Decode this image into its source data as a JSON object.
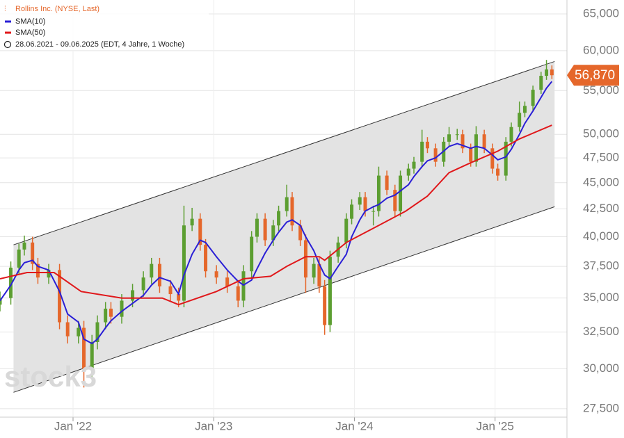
{
  "chart_data": {
    "type": "candlestick",
    "title": "Rollins Inc. (NYSE, Last)",
    "subtitle": "28.06.2021 - 09.06.2025  (EDT, 4 Jahre, 1 Woche)",
    "watermark": "stock3",
    "log_scale": true,
    "grid": true,
    "up_color": "#5c9e31",
    "down_color": "#e5672b",
    "x": [
      0,
      4,
      7,
      9,
      12,
      14,
      18,
      22,
      25,
      29,
      31,
      34,
      36,
      39,
      41,
      45,
      49,
      53,
      56,
      59,
      63,
      66,
      68,
      71,
      74,
      76,
      80,
      84,
      88,
      90,
      93,
      95,
      98,
      101,
      103,
      106,
      108,
      111,
      113,
      116,
      118,
      120,
      122,
      125,
      128,
      130,
      133,
      135,
      138,
      140,
      143,
      146,
      148,
      151,
      153,
      156,
      158,
      161,
      164,
      166,
      169,
      171,
      174,
      176,
      179,
      182,
      184,
      187,
      189,
      192,
      194,
      197,
      200,
      202,
      204
    ],
    "open": [
      34500,
      35000,
      37400,
      38900,
      39500,
      37700,
      36600,
      37200,
      33200,
      32200,
      32800,
      30000,
      31800,
      33200,
      34200,
      33600,
      34800,
      35600,
      36600,
      37700,
      35900,
      35300,
      34800,
      41000,
      41600,
      39300,
      37100,
      36600,
      35900,
      34800,
      37100,
      40000,
      41600,
      39700,
      41000,
      42300,
      43600,
      41000,
      39700,
      36600,
      37700,
      35900,
      33000,
      38300,
      39500,
      41600,
      42900,
      43600,
      42300,
      42300,
      45700,
      44300,
      42300,
      45700,
      46400,
      47100,
      49200,
      48500,
      47100,
      49200,
      50000,
      50000,
      48500,
      47100,
      50000,
      48500,
      46400,
      45700,
      49200,
      50800,
      52400,
      53200,
      55100,
      56800,
      57600
    ],
    "high": [
      35500,
      37900,
      39400,
      40100,
      40000,
      38200,
      37700,
      37700,
      33700,
      33300,
      33300,
      32300,
      33700,
      34700,
      34700,
      35300,
      36100,
      37100,
      38200,
      38200,
      36400,
      35800,
      42800,
      42600,
      42100,
      39800,
      37600,
      37100,
      36400,
      37600,
      40500,
      42100,
      42100,
      41500,
      42800,
      44800,
      44100,
      41500,
      40200,
      38200,
      38200,
      36400,
      38800,
      40000,
      42100,
      43400,
      44100,
      44100,
      42800,
      46600,
      46200,
      44800,
      46200,
      46900,
      47600,
      50500,
      49700,
      49000,
      49700,
      50800,
      50600,
      50500,
      49000,
      50900,
      50500,
      49000,
      46900,
      49700,
      51300,
      53700,
      53700,
      55600,
      57300,
      58800,
      58100
    ],
    "low": [
      34000,
      34500,
      36900,
      38400,
      37200,
      36100,
      36100,
      32700,
      31700,
      31700,
      28800,
      29500,
      31300,
      32700,
      33100,
      33100,
      34300,
      35100,
      36100,
      35400,
      34800,
      34300,
      34300,
      40500,
      38800,
      36600,
      36100,
      35400,
      34300,
      34300,
      36600,
      39500,
      39200,
      39200,
      40500,
      41800,
      40500,
      39200,
      35400,
      36100,
      35400,
      32300,
      32500,
      37800,
      39000,
      41100,
      42400,
      41800,
      41000,
      41800,
      43800,
      41800,
      41800,
      45200,
      45900,
      46600,
      48000,
      46600,
      46600,
      48700,
      49400,
      48000,
      46600,
      46600,
      48000,
      45900,
      45200,
      45200,
      48700,
      50300,
      51900,
      52700,
      54600,
      56300,
      56400
    ],
    "close": [
      35000,
      37400,
      38900,
      39500,
      37700,
      36600,
      37200,
      33200,
      32200,
      32800,
      30000,
      31800,
      33200,
      34200,
      33600,
      34800,
      35600,
      36600,
      37700,
      35900,
      35300,
      34800,
      41000,
      41600,
      39300,
      37100,
      36600,
      35900,
      34800,
      37100,
      40000,
      41600,
      39700,
      41000,
      42300,
      43600,
      41000,
      39700,
      36600,
      37700,
      35900,
      33000,
      38300,
      39500,
      41600,
      42900,
      43600,
      42300,
      42300,
      45700,
      44300,
      42300,
      45700,
      46400,
      47100,
      49200,
      48500,
      47100,
      49200,
      50000,
      50000,
      48500,
      47100,
      50000,
      48500,
      46400,
      45700,
      49200,
      50800,
      52400,
      53200,
      55100,
      56800,
      57600,
      56870
    ],
    "last": {
      "value": 56870,
      "label": "56,870"
    },
    "series": [
      {
        "name": "SMA(10)",
        "color": "#2a1fd6",
        "x": [
          0,
          4,
          7,
          9,
          12,
          14,
          18,
          22,
          25,
          29,
          31,
          34,
          36,
          39,
          41,
          45,
          49,
          53,
          56,
          59,
          63,
          66,
          68,
          71,
          74,
          76,
          80,
          84,
          88,
          90,
          93,
          95,
          98,
          101,
          103,
          106,
          108,
          111,
          113,
          116,
          118,
          120,
          122,
          125,
          128,
          130,
          133,
          135,
          138,
          140,
          143,
          146,
          148,
          151,
          153,
          156,
          158,
          161,
          164,
          166,
          169,
          171,
          174,
          176,
          179,
          182,
          184,
          187,
          189,
          192,
          194,
          197,
          200,
          202,
          204
        ],
        "values": [
          34800,
          36000,
          37200,
          37800,
          38000,
          37500,
          37200,
          35500,
          33800,
          33200,
          32000,
          31700,
          32000,
          32800,
          33300,
          34000,
          34600,
          35200,
          36000,
          36600,
          36300,
          35300,
          36800,
          38500,
          39700,
          39500,
          38300,
          37200,
          36300,
          36000,
          36400,
          37300,
          38600,
          39700,
          40400,
          41300,
          41500,
          41000,
          40000,
          38800,
          37700,
          36800,
          36500,
          37500,
          38500,
          40000,
          41500,
          42300,
          42700,
          42900,
          43500,
          43800,
          44200,
          44800,
          45600,
          46600,
          47200,
          47500,
          48200,
          48700,
          49000,
          48800,
          48500,
          48700,
          48500,
          47800,
          47300,
          47600,
          48400,
          50000,
          51200,
          52600,
          54200,
          55300,
          56100
        ]
      },
      {
        "name": "SMA(50)",
        "color": "#e0181b",
        "x": [
          0,
          10,
          20,
          30,
          45,
          60,
          66,
          80,
          90,
          100,
          106,
          113,
          118,
          120,
          128,
          140,
          150,
          158,
          166,
          174,
          184,
          192,
          204
        ],
        "values": [
          36500,
          37000,
          37000,
          35500,
          35000,
          35000,
          34500,
          35500,
          36500,
          36700,
          37500,
          38300,
          38300,
          38000,
          39500,
          41000,
          42300,
          43700,
          46000,
          47000,
          48200,
          49500,
          51000
        ]
      }
    ],
    "channel": {
      "x": [
        5,
        205
      ],
      "upper": [
        39300,
        58600
      ],
      "lower": [
        28500,
        42700
      ]
    },
    "xlim": [
      0,
      207
    ],
    "xticks": [
      {
        "value": 27,
        "label": "Jan '22"
      },
      {
        "value": 79,
        "label": "Jan '23"
      },
      {
        "value": 131,
        "label": "Jan '24"
      },
      {
        "value": 183,
        "label": "Jan '25"
      }
    ],
    "ylim": [
      27000,
      67000
    ],
    "yticks": [
      {
        "value": 27500,
        "label": "27,500"
      },
      {
        "value": 30000,
        "label": "30,000"
      },
      {
        "value": 32500,
        "label": "32,500"
      },
      {
        "value": 35000,
        "label": "35,000"
      },
      {
        "value": 37500,
        "label": "37,500"
      },
      {
        "value": 40000,
        "label": "40,000"
      },
      {
        "value": 42500,
        "label": "42,500"
      },
      {
        "value": 45000,
        "label": "45,000"
      },
      {
        "value": 47500,
        "label": "47,500"
      },
      {
        "value": 50000,
        "label": "50,000"
      },
      {
        "value": 55000,
        "label": "55,000"
      },
      {
        "value": 60000,
        "label": "60,000"
      },
      {
        "value": 65000,
        "label": "65,000"
      }
    ]
  }
}
